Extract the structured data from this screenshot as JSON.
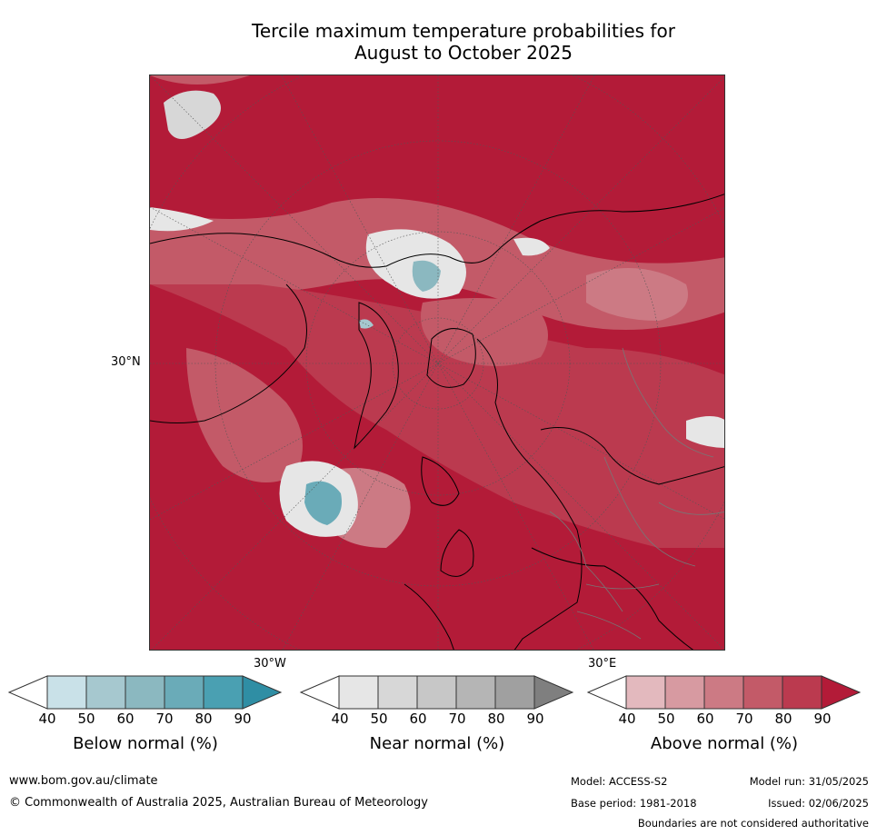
{
  "title": {
    "line1": "Tercile maximum temperature probabilities for",
    "line2": "August to October 2025"
  },
  "map": {
    "projection": "north-polar-stereographic",
    "lat_label": "30°N",
    "lon_label_left": "30°W",
    "lon_label_right": "30°E",
    "dominant_color": "#b31b38"
  },
  "colorbars": [
    {
      "title": "Below normal (%)",
      "ticks": [
        "40",
        "50",
        "60",
        "70",
        "80",
        "90"
      ],
      "colors": [
        "#ffffff",
        "#c9e1e8",
        "#a6c8cf",
        "#8bb8c0",
        "#6aabb8",
        "#4aa0b2",
        "#2f8ea4"
      ]
    },
    {
      "title": "Near normal (%)",
      "ticks": [
        "40",
        "50",
        "60",
        "70",
        "80",
        "90"
      ],
      "colors": [
        "#ffffff",
        "#e6e6e6",
        "#d7d7d7",
        "#c7c7c7",
        "#b5b5b5",
        "#a0a0a0",
        "#7f7f7f"
      ]
    },
    {
      "title": "Above normal (%)",
      "ticks": [
        "40",
        "50",
        "60",
        "70",
        "80",
        "90"
      ],
      "colors": [
        "#ffffff",
        "#e3b9be",
        "#d79aa1",
        "#cc7a84",
        "#c35a68",
        "#bb3a4f",
        "#b31b38"
      ]
    }
  ],
  "footer": {
    "website": "www.bom.gov.au/climate",
    "copyright": "© Commonwealth of Australia 2025, Australian Bureau of Meteorology",
    "model": "Model: ACCESS-S2",
    "base_period": "Base period: 1981-2018",
    "model_run": "Model run: 31/05/2025",
    "issued": "Issued: 02/06/2025",
    "disclaimer": "Boundaries are not considered authoritative"
  }
}
